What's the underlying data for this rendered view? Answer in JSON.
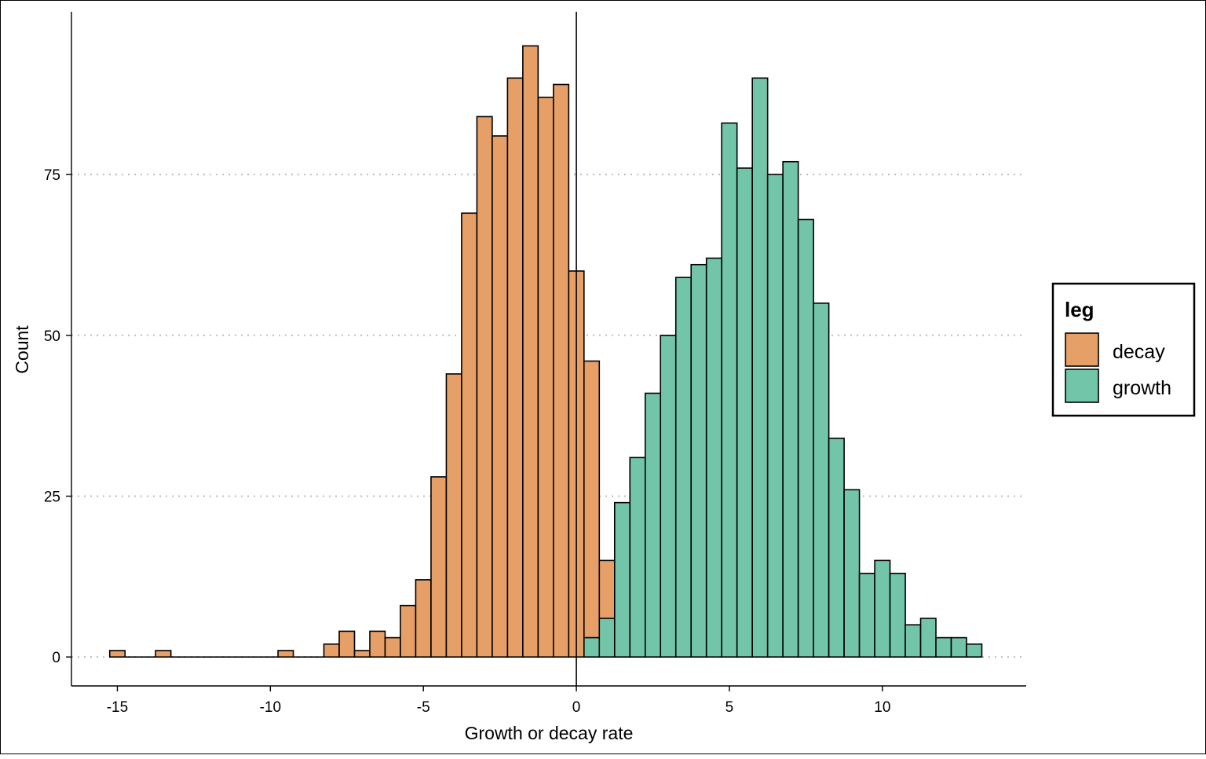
{
  "chart_data": {
    "type": "bar",
    "xlabel": "Growth or decay rate",
    "ylabel": "Count",
    "xlim": [
      -16.5,
      14.7
    ],
    "ylim": [
      -4.5,
      100.3
    ],
    "xticks": [
      -15,
      -10,
      -5,
      0,
      5,
      10
    ],
    "xtick_labels": [
      "-15",
      "-10",
      "-5",
      "0",
      "5",
      "10"
    ],
    "yticks": [
      0,
      25,
      50,
      75
    ],
    "ytick_labels": [
      "0",
      "25",
      "50",
      "75"
    ],
    "grid": "horizontal dotted",
    "vline": 0,
    "bin_width": 0.5,
    "legend": {
      "title": "leg",
      "position": "right",
      "entries": [
        "decay",
        "growth"
      ]
    },
    "colors": {
      "decay": "#E69F66",
      "growth": "#73C5A9",
      "outline": "#000000",
      "grid": "#bdbdbd"
    },
    "series": [
      {
        "name": "decay",
        "bin_start": -15.25,
        "values": [
          1,
          0,
          0,
          1,
          0,
          0,
          0,
          0,
          0,
          0,
          0,
          1,
          0,
          0,
          2,
          4,
          1,
          4,
          3,
          8,
          12,
          28,
          44,
          69,
          84,
          81,
          90,
          95,
          87,
          89,
          60,
          46,
          15,
          11,
          6
        ]
      },
      {
        "name": "growth",
        "bin_start": 0.25,
        "values": [
          3,
          6,
          24,
          31,
          41,
          50,
          59,
          61,
          62,
          83,
          76,
          90,
          75,
          77,
          68,
          55,
          34,
          26,
          13,
          15,
          13,
          5,
          6,
          3,
          3,
          2
        ]
      }
    ]
  }
}
